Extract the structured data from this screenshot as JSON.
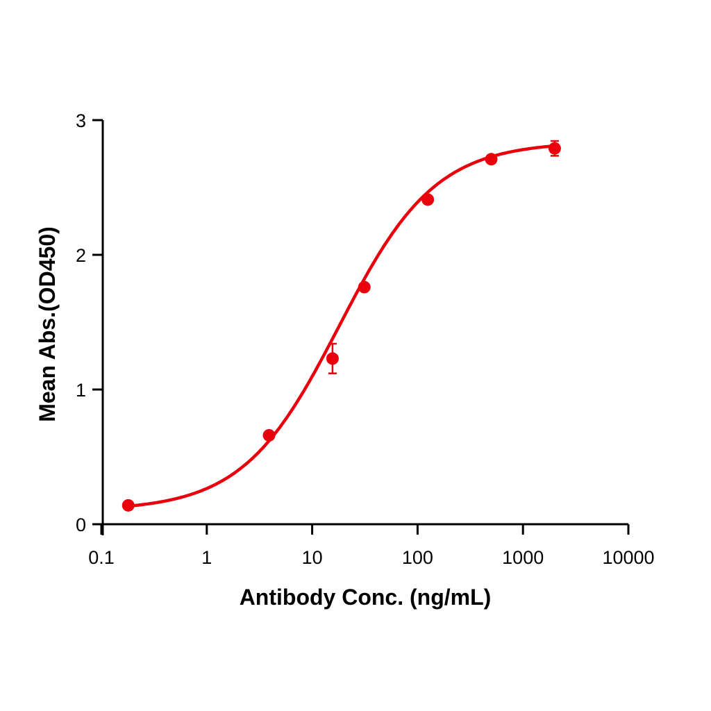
{
  "chart_data": {
    "type": "scatter",
    "title": "",
    "xlabel": "Antibody Conc. (ng/mL)",
    "ylabel": "Mean Abs.(OD450)",
    "xscale": "log",
    "xlim": [
      0.1,
      10000
    ],
    "ylim": [
      0,
      3
    ],
    "x_ticks": [
      "0.1",
      "1",
      "10",
      "100",
      "1000",
      "10000"
    ],
    "y_ticks": [
      "0",
      "1",
      "2",
      "3"
    ],
    "grid": false,
    "legend": null,
    "color": "#e8000d",
    "series": [
      {
        "name": "Mean Abs.",
        "x": [
          0.18,
          3.9,
          15.6,
          31.25,
          125,
          500,
          2000
        ],
        "y": [
          0.14,
          0.66,
          1.23,
          1.76,
          2.41,
          2.71,
          2.79
        ],
        "error": [
          0.01,
          0.01,
          0.11,
          0.01,
          0.01,
          0.01,
          0.055
        ]
      }
    ],
    "fit": {
      "model": "4PL",
      "bottom": 0.1,
      "top": 2.84,
      "ec50": 18,
      "hill": 0.95
    }
  }
}
